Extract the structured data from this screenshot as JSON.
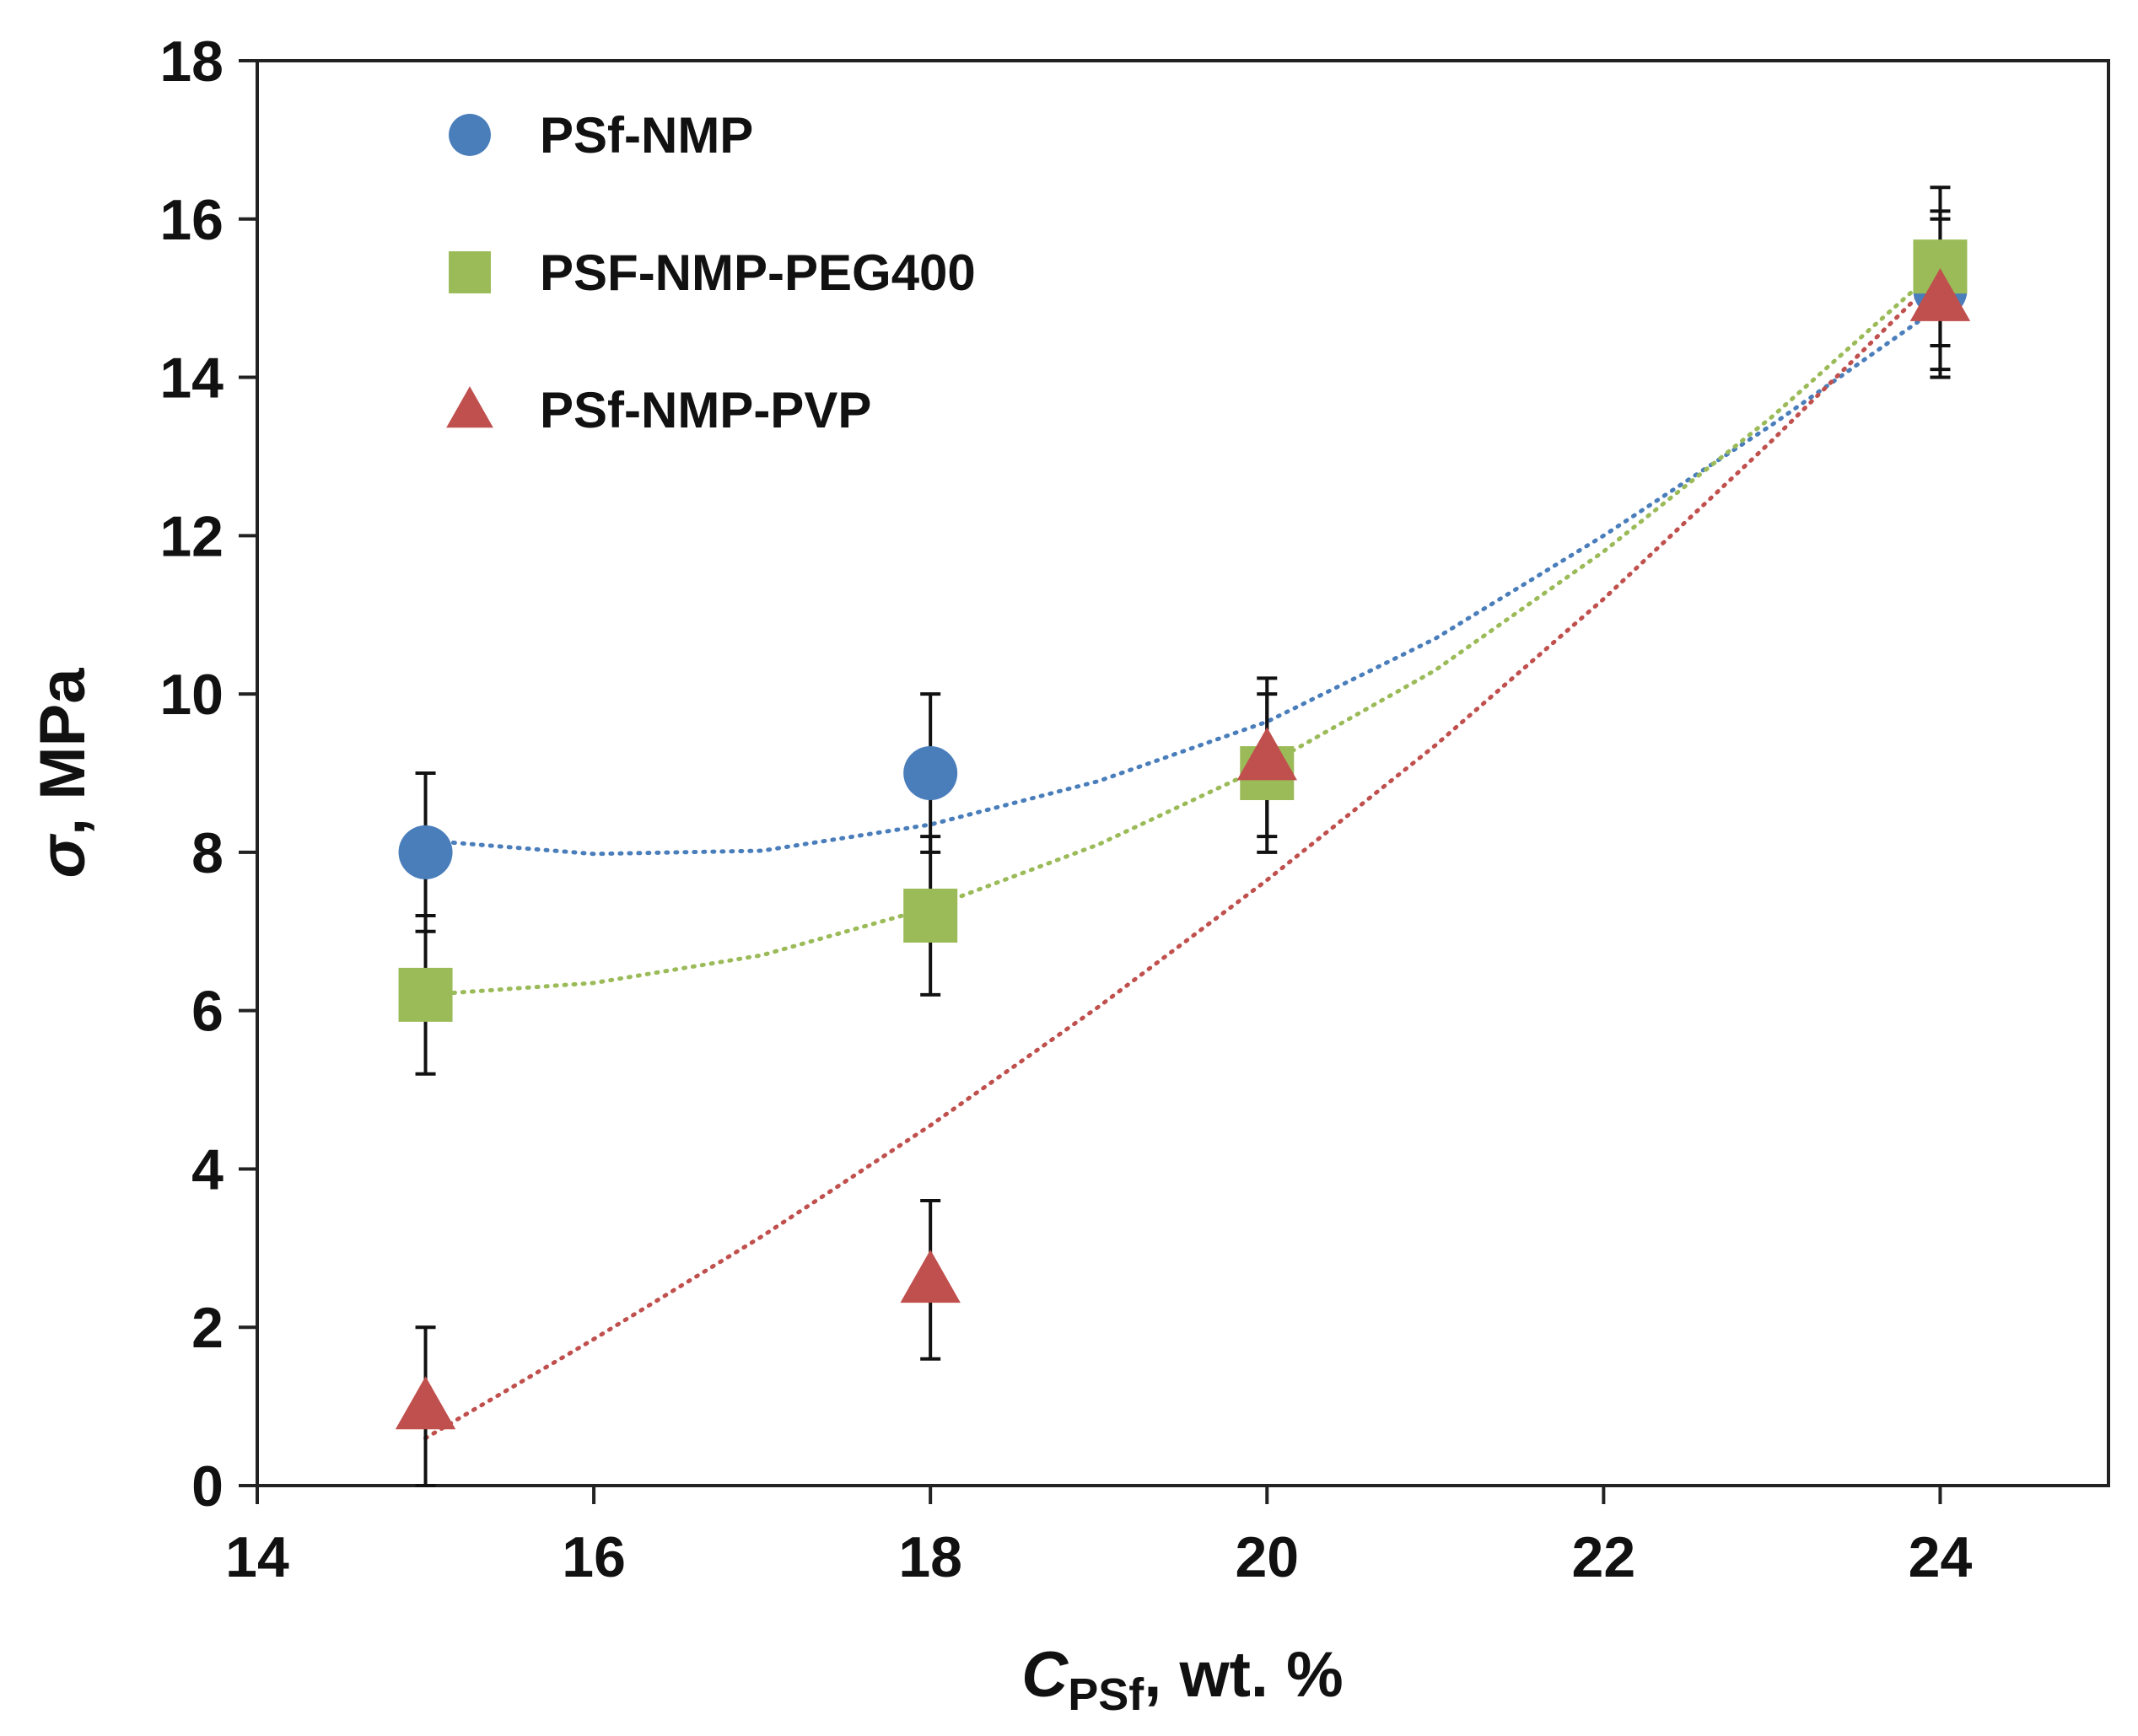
{
  "chart_data": {
    "type": "scatter",
    "title": "",
    "xlabel": {
      "symbol": "C",
      "subscript": "PSf",
      "suffix": ", wt. %"
    },
    "ylabel": {
      "symbol": "σ",
      "suffix": ", MPa"
    },
    "xlim": [
      14,
      25
    ],
    "ylim": [
      0,
      18
    ],
    "xticks": [
      14,
      16,
      18,
      20,
      22,
      24
    ],
    "yticks": [
      0,
      2,
      4,
      6,
      8,
      10,
      12,
      14,
      16,
      18
    ],
    "grid": false,
    "legend_position": "top-left",
    "series": [
      {
        "name": "PSf-NMP",
        "marker": "circle",
        "color": "#4a7ebb",
        "x": [
          15,
          18,
          24
        ],
        "y": [
          8.0,
          9.0,
          15.1
        ],
        "error": [
          1.0,
          1.0,
          1.0
        ],
        "trendline": {
          "style": "dotted",
          "kind": "polynomial",
          "points": [
            [
              15,
              8.15
            ],
            [
              16,
              7.98
            ],
            [
              17,
              8.02
            ],
            [
              18,
              8.35
            ],
            [
              19,
              8.9
            ],
            [
              20,
              9.65
            ],
            [
              21,
              10.7
            ],
            [
              22,
              12.0
            ],
            [
              23,
              13.4
            ],
            [
              24,
              14.9
            ]
          ]
        }
      },
      {
        "name": "PSF-NMP-PEG400",
        "marker": "square",
        "color": "#9bbb59",
        "x": [
          15,
          18,
          20,
          24
        ],
        "y": [
          6.2,
          7.2,
          9.0,
          15.4
        ],
        "error": [
          1.0,
          1.0,
          1.0,
          1.0
        ],
        "trendline": {
          "style": "dotted",
          "kind": "polynomial",
          "points": [
            [
              15,
              6.2
            ],
            [
              16,
              6.35
            ],
            [
              17,
              6.7
            ],
            [
              18,
              7.3
            ],
            [
              19,
              8.1
            ],
            [
              20,
              9.1
            ],
            [
              21,
              10.3
            ],
            [
              22,
              11.8
            ],
            [
              23,
              13.5
            ],
            [
              24,
              15.4
            ]
          ]
        }
      },
      {
        "name": "PSf-NMP-PVP",
        "marker": "triangle",
        "color": "#c0504d",
        "x": [
          15,
          18,
          20,
          24
        ],
        "y": [
          1.0,
          2.6,
          9.2,
          15.0
        ],
        "error": [
          1.0,
          1.0,
          1.0,
          1.0
        ],
        "trendline": {
          "style": "dotted",
          "kind": "polynomial",
          "points": [
            [
              15,
              0.6
            ],
            [
              16,
              1.85
            ],
            [
              17,
              3.15
            ],
            [
              18,
              4.55
            ],
            [
              19,
              6.05
            ],
            [
              20,
              7.65
            ],
            [
              21,
              9.35
            ],
            [
              22,
              11.2
            ],
            [
              23,
              13.2
            ],
            [
              24,
              15.3
            ]
          ]
        }
      }
    ]
  }
}
